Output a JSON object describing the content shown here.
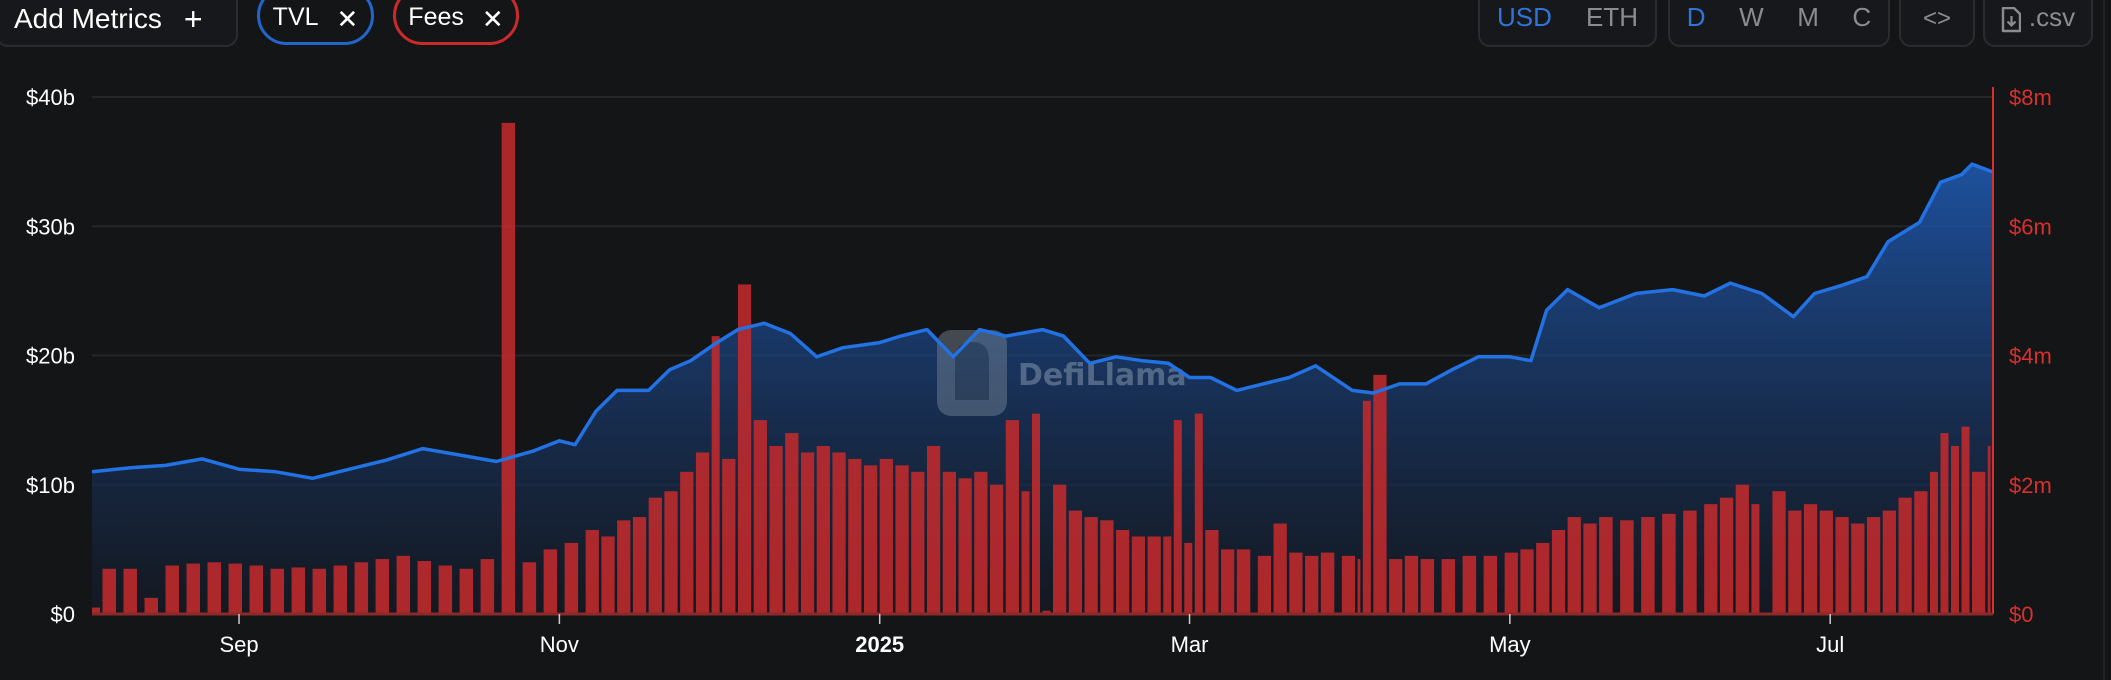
{
  "toolbar": {
    "add_metrics_label": "Add Metrics",
    "add_icon": "plus-icon",
    "metrics": [
      {
        "label": "TVL",
        "color": "#2266cc",
        "remove_icon": "close-icon"
      },
      {
        "label": "Fees",
        "color": "#cc2a2a",
        "remove_icon": "close-icon"
      }
    ],
    "denomination": {
      "options": [
        "USD",
        "ETH"
      ],
      "selected": "USD"
    },
    "granularity": {
      "options": [
        "D",
        "W",
        "M",
        "C"
      ],
      "selected": "D"
    },
    "embed_icon": "code-icon",
    "csv_label": ".csv",
    "csv_icon": "file-download-icon"
  },
  "watermark": "DefiLlama",
  "chart_data": {
    "type": "line+bar",
    "x_ticks": [
      "Sep",
      "Nov",
      "2025",
      "Mar",
      "May",
      "Jul"
    ],
    "x_tick_dates": [
      "2024-09-01",
      "2024-11-01",
      "2025-01-01",
      "2025-03-01",
      "2025-05-01",
      "2025-07-01"
    ],
    "xlim": [
      "2024-08-04",
      "2025-08-01"
    ],
    "y_left": {
      "ticks": [
        "$0",
        "$10b",
        "$20b",
        "$30b",
        "$40b"
      ],
      "ylim": [
        0,
        40
      ],
      "unit": "billion USD"
    },
    "y_right": {
      "ticks": [
        "$0",
        "$2m",
        "$4m",
        "$6m",
        "$8m"
      ],
      "ylim": [
        0,
        8
      ],
      "unit": "million USD"
    },
    "grid": true,
    "series": [
      {
        "name": "TVL",
        "type": "area",
        "axis": "left",
        "color": "#2172e5",
        "x": [
          "2024-08-04",
          "2024-08-11",
          "2024-08-18",
          "2024-08-25",
          "2024-09-01",
          "2024-09-08",
          "2024-09-15",
          "2024-09-22",
          "2024-09-29",
          "2024-10-06",
          "2024-10-13",
          "2024-10-20",
          "2024-10-27",
          "2024-11-01",
          "2024-11-04",
          "2024-11-08",
          "2024-11-12",
          "2024-11-18",
          "2024-11-22",
          "2024-11-26",
          "2024-12-01",
          "2024-12-05",
          "2024-12-10",
          "2024-12-15",
          "2024-12-20",
          "2024-12-25",
          "2025-01-01",
          "2025-01-05",
          "2025-01-10",
          "2025-01-15",
          "2025-01-20",
          "2025-01-25",
          "2025-02-01",
          "2025-02-05",
          "2025-02-10",
          "2025-02-15",
          "2025-02-20",
          "2025-02-25",
          "2025-03-01",
          "2025-03-05",
          "2025-03-10",
          "2025-03-15",
          "2025-03-20",
          "2025-03-25",
          "2025-04-01",
          "2025-04-05",
          "2025-04-10",
          "2025-04-15",
          "2025-04-20",
          "2025-04-25",
          "2025-05-01",
          "2025-05-05",
          "2025-05-08",
          "2025-05-12",
          "2025-05-18",
          "2025-05-25",
          "2025-06-01",
          "2025-06-07",
          "2025-06-12",
          "2025-06-18",
          "2025-06-24",
          "2025-06-28",
          "2025-07-03",
          "2025-07-08",
          "2025-07-12",
          "2025-07-18",
          "2025-07-22",
          "2025-07-26",
          "2025-07-28",
          "2025-08-01"
        ],
        "values": [
          11.0,
          11.3,
          11.5,
          12.0,
          11.2,
          11.0,
          10.5,
          11.2,
          11.9,
          12.8,
          12.3,
          11.8,
          12.6,
          13.4,
          13.1,
          15.7,
          17.3,
          17.3,
          18.9,
          19.6,
          21.0,
          22.0,
          22.5,
          21.7,
          19.9,
          20.6,
          21.0,
          21.5,
          22.0,
          19.9,
          22.0,
          21.5,
          22.0,
          21.5,
          19.4,
          19.9,
          19.6,
          19.4,
          18.3,
          18.3,
          17.3,
          17.8,
          18.3,
          19.2,
          17.3,
          17.1,
          17.8,
          17.8,
          18.9,
          19.9,
          19.9,
          19.6,
          23.5,
          25.1,
          23.7,
          24.8,
          25.1,
          24.6,
          25.6,
          24.8,
          23.0,
          24.8,
          25.4,
          26.1,
          28.8,
          30.3,
          33.4,
          34.0,
          34.8,
          34.2
        ]
      },
      {
        "name": "Fees",
        "type": "bar",
        "axis": "right",
        "color": "#c62a2a",
        "x": [
          "2024-08-04",
          "2024-08-06",
          "2024-08-10",
          "2024-08-14",
          "2024-08-18",
          "2024-08-22",
          "2024-08-26",
          "2024-08-30",
          "2024-09-03",
          "2024-09-07",
          "2024-09-11",
          "2024-09-15",
          "2024-09-19",
          "2024-09-23",
          "2024-09-27",
          "2024-10-01",
          "2024-10-05",
          "2024-10-09",
          "2024-10-13",
          "2024-10-17",
          "2024-10-21",
          "2024-10-25",
          "2024-10-29",
          "2024-11-02",
          "2024-11-06",
          "2024-11-09",
          "2024-11-12",
          "2024-11-15",
          "2024-11-18",
          "2024-11-21",
          "2024-11-24",
          "2024-11-27",
          "2024-11-30",
          "2024-12-02",
          "2024-12-05",
          "2024-12-08",
          "2024-12-11",
          "2024-12-14",
          "2024-12-17",
          "2024-12-20",
          "2024-12-23",
          "2024-12-26",
          "2024-12-29",
          "2025-01-01",
          "2025-01-04",
          "2025-01-07",
          "2025-01-10",
          "2025-01-13",
          "2025-01-16",
          "2025-01-19",
          "2025-01-22",
          "2025-01-25",
          "2025-01-28",
          "2025-01-30",
          "2025-02-01",
          "2025-02-03",
          "2025-02-06",
          "2025-02-09",
          "2025-02-12",
          "2025-02-15",
          "2025-02-18",
          "2025-02-21",
          "2025-02-24",
          "2025-02-26",
          "2025-02-28",
          "2025-03-02",
          "2025-03-04",
          "2025-03-07",
          "2025-03-10",
          "2025-03-14",
          "2025-03-17",
          "2025-03-20",
          "2025-03-23",
          "2025-03-26",
          "2025-03-30",
          "2025-04-02",
          "2025-04-03",
          "2025-04-05",
          "2025-04-08",
          "2025-04-11",
          "2025-04-14",
          "2025-04-18",
          "2025-04-22",
          "2025-04-26",
          "2025-04-30",
          "2025-05-03",
          "2025-05-06",
          "2025-05-09",
          "2025-05-12",
          "2025-05-15",
          "2025-05-18",
          "2025-05-22",
          "2025-05-26",
          "2025-05-30",
          "2025-06-03",
          "2025-06-07",
          "2025-06-10",
          "2025-06-13",
          "2025-06-16",
          "2025-06-18",
          "2025-06-20",
          "2025-06-23",
          "2025-06-26",
          "2025-06-29",
          "2025-07-02",
          "2025-07-05",
          "2025-07-08",
          "2025-07-11",
          "2025-07-14",
          "2025-07-17",
          "2025-07-20",
          "2025-07-22",
          "2025-07-24",
          "2025-07-26",
          "2025-07-28",
          "2025-07-31"
        ],
        "values": [
          0.1,
          0.7,
          0.7,
          0.25,
          0.75,
          0.78,
          0.8,
          0.78,
          0.75,
          0.7,
          0.72,
          0.7,
          0.75,
          0.8,
          0.85,
          0.9,
          0.82,
          0.75,
          0.7,
          0.85,
          7.6,
          0.8,
          1.0,
          1.1,
          1.3,
          1.2,
          1.45,
          1.5,
          1.8,
          1.9,
          2.2,
          2.5,
          4.3,
          2.4,
          5.1,
          3.0,
          2.6,
          2.8,
          2.5,
          2.6,
          2.5,
          2.4,
          2.3,
          2.4,
          2.3,
          2.2,
          2.6,
          2.2,
          2.1,
          2.2,
          2.0,
          3.0,
          1.9,
          3.1,
          0.05,
          2.0,
          1.6,
          1.5,
          1.45,
          1.3,
          1.2,
          1.2,
          1.2,
          3.0,
          1.1,
          3.1,
          1.3,
          1.0,
          1.0,
          0.9,
          1.4,
          0.95,
          0.9,
          0.95,
          0.9,
          0.85,
          3.3,
          3.7,
          0.85,
          0.9,
          0.85,
          0.85,
          0.9,
          0.9,
          0.95,
          1.0,
          1.1,
          1.3,
          1.5,
          1.4,
          1.5,
          1.45,
          1.5,
          1.55,
          1.6,
          1.7,
          1.8,
          2.0,
          1.7,
          0.02,
          1.9,
          1.6,
          1.7,
          1.6,
          1.5,
          1.4,
          1.5,
          1.6,
          1.8,
          1.9,
          2.2,
          2.8,
          2.6,
          2.9,
          2.2,
          2.6
        ]
      }
    ]
  }
}
